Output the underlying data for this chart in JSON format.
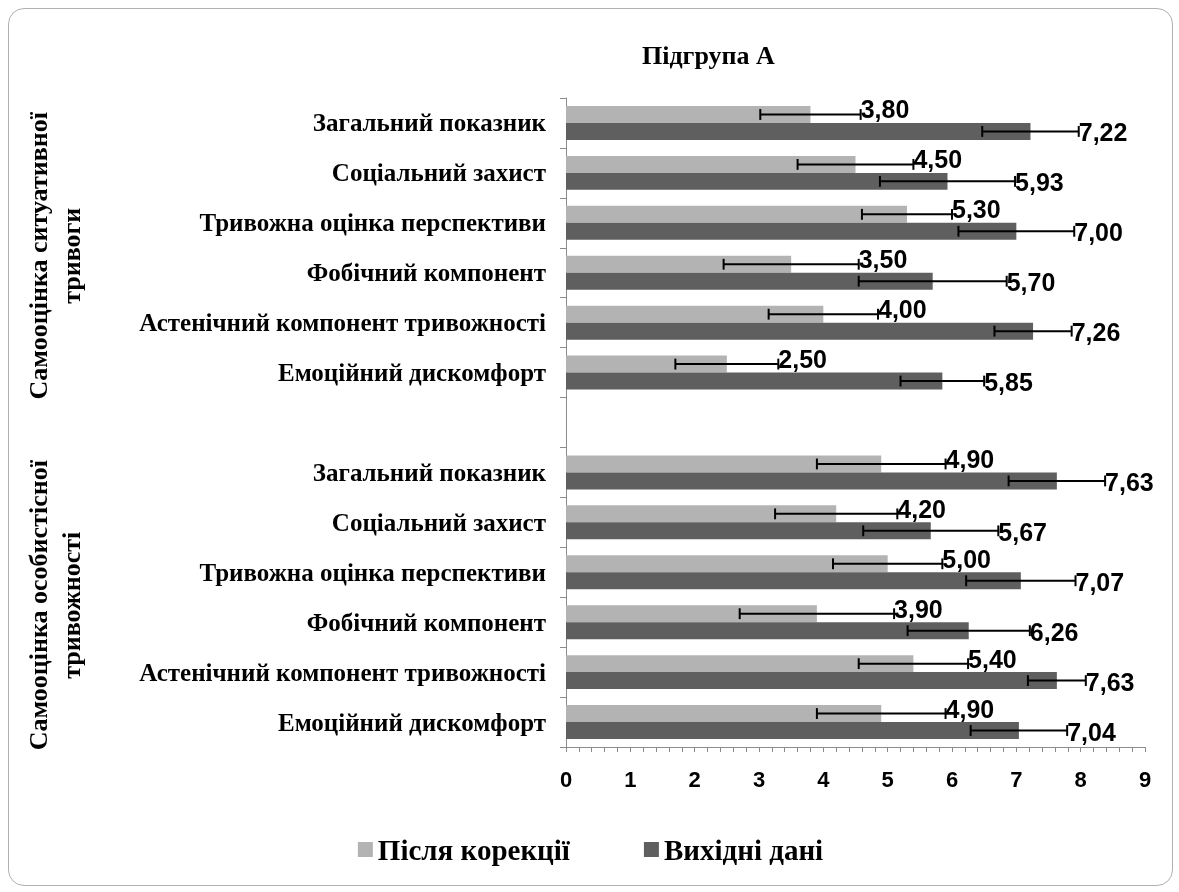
{
  "chart_data": {
    "type": "bar",
    "orientation": "horizontal",
    "title": "Підгрупа А",
    "categories": [
      "Загальний показник",
      "Соціальний захист",
      "Тривожна оцінка перспективи",
      "Фобічний компонент",
      "Астенічний компонент тривожності",
      "Емоційний дискомфорт",
      null,
      "Загальний показник",
      "Соціальний захист",
      "Тривожна оцінка перспективи",
      "Фобічний компонент",
      "Астенічний компонент тривожності",
      "Емоційний дискомфорт"
    ],
    "series": [
      {
        "name": "Після корекції",
        "color": "#b3b3b3",
        "values": [
          3.8,
          4.5,
          5.3,
          3.5,
          4.0,
          2.5,
          null,
          4.9,
          4.2,
          5.0,
          3.9,
          5.4,
          4.9
        ],
        "errors": [
          0.78,
          0.9,
          0.7,
          1.05,
          0.85,
          0.8,
          null,
          1.0,
          0.95,
          0.85,
          1.2,
          0.85,
          1.0
        ],
        "value_labels": [
          "3,80",
          "4,50",
          "5,30",
          "3,50",
          "4,00",
          "2,50",
          null,
          "4,90",
          "4,20",
          "5,00",
          "3,90",
          "5,40",
          "4,90"
        ]
      },
      {
        "name": "Вихідні дані",
        "color": "#5f5f5f",
        "values": [
          7.22,
          5.93,
          7.0,
          5.7,
          7.26,
          5.85,
          null,
          7.63,
          5.67,
          7.07,
          6.26,
          7.63,
          7.04
        ],
        "errors": [
          0.75,
          1.05,
          0.9,
          1.15,
          0.6,
          0.65,
          null,
          0.75,
          1.05,
          0.85,
          0.95,
          0.45,
          0.75
        ],
        "value_labels": [
          "7,22",
          "5,93",
          "7,00",
          "5,70",
          "7,26",
          "5,85",
          null,
          "7,63",
          "5,67",
          "7,07",
          "6,26",
          "7,63",
          "7,04"
        ]
      }
    ],
    "xlim": [
      0,
      9
    ],
    "xticks": [
      0,
      {
        "value": 0.2,
        "label": null
      },
      {
        "value": 0.4,
        "label": null
      },
      {
        "value": 0.6,
        "label": null
      },
      {
        "value": 0.8,
        "label": null
      },
      1,
      {
        "value": 1.2,
        "label": null
      },
      {
        "value": 1.4,
        "label": null
      },
      {
        "value": 1.6,
        "label": null
      },
      {
        "value": 1.8,
        "label": null
      },
      2,
      {
        "value": 2.2,
        "label": null
      },
      {
        "value": 2.4,
        "label": null
      },
      {
        "value": 2.6,
        "label": null
      },
      {
        "value": 2.8,
        "label": null
      },
      3,
      {
        "value": 3.2,
        "label": null
      },
      {
        "value": 3.4,
        "label": null
      },
      {
        "value": 3.6,
        "label": null
      },
      {
        "value": 3.8,
        "label": null
      },
      4,
      {
        "value": 4.2,
        "label": null
      },
      {
        "value": 4.4,
        "label": null
      },
      {
        "value": 4.6,
        "label": null
      },
      {
        "value": 4.8,
        "label": null
      },
      5,
      {
        "value": 5.2,
        "label": null
      },
      {
        "value": 5.4,
        "label": null
      },
      {
        "value": 5.6,
        "label": null
      },
      {
        "value": 5.8,
        "label": null
      },
      6,
      {
        "value": 6.2,
        "label": null
      },
      {
        "value": 6.4,
        "label": null
      },
      {
        "value": 6.6,
        "label": null
      },
      {
        "value": 6.8,
        "label": null
      },
      7,
      {
        "value": 7.2,
        "label": null
      },
      {
        "value": 7.4,
        "label": null
      },
      {
        "value": 7.6,
        "label": null
      },
      {
        "value": 7.8,
        "label": null
      },
      8,
      {
        "value": 8.2,
        "label": null
      },
      {
        "value": 8.4,
        "label": null
      },
      {
        "value": 8.6,
        "label": null
      },
      {
        "value": 8.8,
        "label": null
      },
      9
    ],
    "legend": "bottom",
    "annotations": [
      "Самооцінка ситуативної тривоги",
      "Самооцінка особистісної тривожності"
    ]
  }
}
